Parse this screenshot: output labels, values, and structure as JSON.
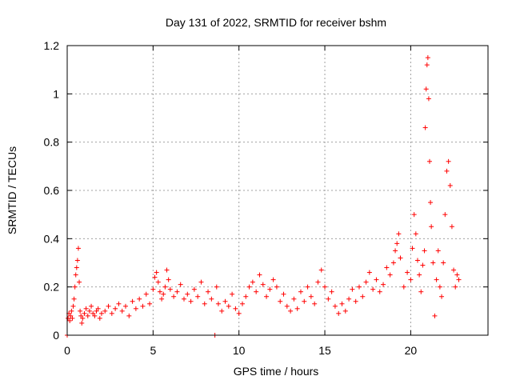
{
  "chart_data": {
    "type": "scatter",
    "title": "Day 131 of 2022, SRMTID for receiver bshm",
    "xlabel": "GPS time / hours",
    "ylabel": "SRMTID / TECUs",
    "xlim": [
      0,
      24.5
    ],
    "ylim": [
      0,
      1.2
    ],
    "grid": true,
    "marker": "+",
    "color": "#ff0000",
    "xticks": [
      0,
      5,
      10,
      15,
      20
    ],
    "xtick_labels": [
      "0",
      "5",
      "10",
      "15",
      "20"
    ],
    "yticks": [
      0,
      0.2,
      0.4,
      0.6,
      0.8,
      1.0,
      1.2
    ],
    "ytick_labels": [
      "0",
      "0.2",
      "0.4",
      "0.6",
      "0.8",
      "1",
      "1.2"
    ],
    "series": [
      {
        "name": "SRMTID",
        "x": [
          0.0,
          0.05,
          0.1,
          0.15,
          0.2,
          0.25,
          0.3,
          0.35,
          0.4,
          0.45,
          0.5,
          0.55,
          0.6,
          0.65,
          0.7,
          0.75,
          0.8,
          0.85,
          0.9,
          1.0,
          1.1,
          1.2,
          1.3,
          1.4,
          1.5,
          1.6,
          1.7,
          1.8,
          1.9,
          2.0,
          2.2,
          2.4,
          2.6,
          2.8,
          3.0,
          3.2,
          3.4,
          3.6,
          3.8,
          4.0,
          4.2,
          4.4,
          4.6,
          4.8,
          5.0,
          5.1,
          5.2,
          5.3,
          5.4,
          5.5,
          5.6,
          5.7,
          5.8,
          5.9,
          6.0,
          6.2,
          6.4,
          6.6,
          6.8,
          7.0,
          7.2,
          7.4,
          7.6,
          7.8,
          8.0,
          8.2,
          8.4,
          8.6,
          8.7,
          8.8,
          9.0,
          9.2,
          9.4,
          9.6,
          9.8,
          10.0,
          10.2,
          10.4,
          10.6,
          10.8,
          11.0,
          11.2,
          11.4,
          11.6,
          11.8,
          12.0,
          12.2,
          12.4,
          12.6,
          12.8,
          13.0,
          13.2,
          13.4,
          13.6,
          13.8,
          14.0,
          14.2,
          14.4,
          14.6,
          14.8,
          15.0,
          15.2,
          15.4,
          15.6,
          15.8,
          16.0,
          16.2,
          16.4,
          16.6,
          16.8,
          17.0,
          17.2,
          17.4,
          17.6,
          17.8,
          18.0,
          18.2,
          18.4,
          18.6,
          18.8,
          19.0,
          19.1,
          19.2,
          19.3,
          19.4,
          19.6,
          19.8,
          20.0,
          20.1,
          20.2,
          20.3,
          20.4,
          20.5,
          20.6,
          20.7,
          20.8,
          20.85,
          20.9,
          20.95,
          21.0,
          21.05,
          21.1,
          21.15,
          21.2,
          21.3,
          21.4,
          21.5,
          21.6,
          21.7,
          21.8,
          21.9,
          22.0,
          22.1,
          22.2,
          22.3,
          22.4,
          22.5,
          22.6,
          22.7,
          22.8
        ],
        "y": [
          0.0,
          0.07,
          0.09,
          0.06,
          0.08,
          0.1,
          0.07,
          0.12,
          0.15,
          0.2,
          0.25,
          0.28,
          0.31,
          0.36,
          0.22,
          0.1,
          0.08,
          0.05,
          0.07,
          0.09,
          0.11,
          0.08,
          0.1,
          0.12,
          0.09,
          0.08,
          0.1,
          0.11,
          0.07,
          0.09,
          0.1,
          0.12,
          0.09,
          0.11,
          0.13,
          0.1,
          0.12,
          0.08,
          0.14,
          0.11,
          0.15,
          0.12,
          0.17,
          0.13,
          0.19,
          0.24,
          0.26,
          0.22,
          0.18,
          0.15,
          0.17,
          0.2,
          0.27,
          0.23,
          0.19,
          0.16,
          0.18,
          0.21,
          0.15,
          0.17,
          0.14,
          0.19,
          0.16,
          0.22,
          0.13,
          0.18,
          0.15,
          0.0,
          0.2,
          0.13,
          0.1,
          0.14,
          0.12,
          0.17,
          0.11,
          0.09,
          0.13,
          0.16,
          0.2,
          0.22,
          0.18,
          0.25,
          0.21,
          0.16,
          0.19,
          0.23,
          0.2,
          0.14,
          0.17,
          0.12,
          0.1,
          0.15,
          0.11,
          0.18,
          0.14,
          0.2,
          0.16,
          0.13,
          0.22,
          0.27,
          0.2,
          0.15,
          0.18,
          0.12,
          0.09,
          0.13,
          0.1,
          0.15,
          0.19,
          0.14,
          0.2,
          0.16,
          0.22,
          0.26,
          0.19,
          0.23,
          0.18,
          0.21,
          0.28,
          0.25,
          0.3,
          0.35,
          0.38,
          0.42,
          0.32,
          0.2,
          0.26,
          0.23,
          0.36,
          0.5,
          0.42,
          0.31,
          0.25,
          0.18,
          0.29,
          0.35,
          0.86,
          1.02,
          1.12,
          1.15,
          0.98,
          0.72,
          0.55,
          0.45,
          0.3,
          0.08,
          0.23,
          0.35,
          0.2,
          0.16,
          0.3,
          0.5,
          0.68,
          0.72,
          0.62,
          0.45,
          0.27,
          0.2,
          0.25,
          0.23
        ]
      }
    ]
  }
}
